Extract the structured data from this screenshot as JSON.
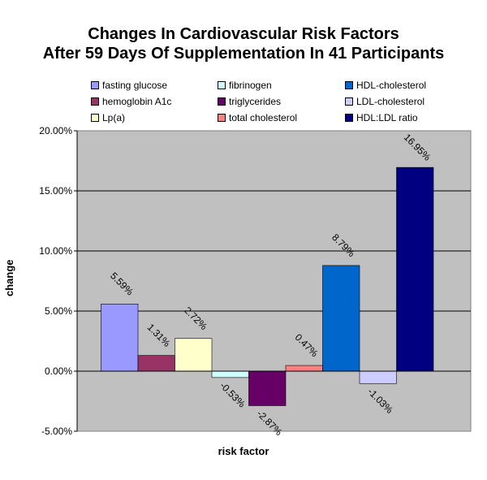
{
  "chart_data": {
    "type": "bar",
    "title": "Changes In Cardiovascular Risk Factors",
    "subtitle": "After 59 Days Of Supplementation In 41 Participants",
    "xlabel": "risk factor",
    "ylabel": "change",
    "ylim": [
      -5,
      20
    ],
    "yticks": [
      -5,
      0,
      5,
      10,
      15,
      20
    ],
    "ytick_labels": [
      "-5.00%",
      "0.00%",
      "5.00%",
      "10.00%",
      "15.00%",
      "20.00%"
    ],
    "grid": true,
    "legend_position": "top",
    "series": [
      {
        "name": "fasting glucose",
        "value": 5.59,
        "label": "5.59%",
        "color": "#9999ff"
      },
      {
        "name": "hemoglobin A1c",
        "value": 1.31,
        "label": "1.31%",
        "color": "#993366"
      },
      {
        "name": "Lp(a)",
        "value": 2.72,
        "label": "2.72%",
        "color": "#ffffcc"
      },
      {
        "name": "fibrinogen",
        "value": -0.53,
        "label": "-0.53%",
        "color": "#ccffff"
      },
      {
        "name": "triglycerides",
        "value": -2.87,
        "label": "-2.87%",
        "color": "#660066"
      },
      {
        "name": "total cholesterol",
        "value": 0.47,
        "label": "0.47%",
        "color": "#ff8080"
      },
      {
        "name": "HDL-cholesterol",
        "value": 8.79,
        "label": "8.79%",
        "color": "#0066cc"
      },
      {
        "name": "LDL-cholesterol",
        "value": -1.03,
        "label": "-1.03%",
        "color": "#ccccff"
      },
      {
        "name": "HDL:LDL ratio",
        "value": 16.95,
        "label": "16.95%",
        "color": "#000080"
      }
    ]
  }
}
